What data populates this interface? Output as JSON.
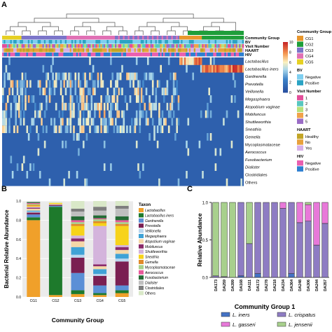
{
  "panel_labels": {
    "a": "A",
    "b": "B",
    "c": "C"
  },
  "chart_data": [
    {
      "type": "heatmap",
      "panel": "A",
      "annotation_rows": [
        "Community Group",
        "BV",
        "Visit Number",
        "HAART",
        "HIV"
      ],
      "taxa_rows": [
        "Lactobacillus",
        "Lactobacillus iners",
        "Gardnerella",
        "Prevotella",
        "Veillonella",
        "Megasphaera",
        "Atopobium vaginae",
        "Mobiluncus",
        "Shuttleworthia",
        "Sneathia",
        "Gemella",
        "Mycoplasmataceae",
        "Aerococcus",
        "Fusobacterium",
        "Dialister",
        "Clostridiales",
        "Others"
      ],
      "legends": [
        {
          "title": "Community Group",
          "items": [
            {
              "label": "CG1",
              "color": "#e8962c"
            },
            {
              "label": "CG2",
              "color": "#1e9e3a"
            },
            {
              "label": "CG3",
              "color": "#7b75c9"
            },
            {
              "label": "CG4",
              "color": "#e070b4"
            },
            {
              "label": "CG5",
              "color": "#e6d024"
            }
          ]
        },
        {
          "title": "BV",
          "items": [
            {
              "label": "Negative",
              "color": "#7ecff0"
            },
            {
              "label": "Positive",
              "color": "#2ba3c4"
            }
          ]
        },
        {
          "title": "Visit Number",
          "items": [
            {
              "label": "1",
              "color": "#e34f9a"
            },
            {
              "label": "2",
              "color": "#58c7c0"
            },
            {
              "label": "3",
              "color": "#b7e07a"
            },
            {
              "label": "4",
              "color": "#f1a24a"
            },
            {
              "label": "5",
              "color": "#9a6cc6"
            }
          ]
        },
        {
          "title": "HAART",
          "items": [
            {
              "label": "Healthy",
              "color": "#c2a526"
            },
            {
              "label": "No",
              "color": "#e8a13c"
            },
            {
              "label": "Yes",
              "color": "#d6b0e8"
            }
          ]
        },
        {
          "title": "HIV",
          "items": [
            {
              "label": "Negative",
              "color": "#e95fb0"
            },
            {
              "label": "Positive",
              "color": "#2d7fd1"
            }
          ]
        }
      ],
      "colorbar_ticks": [
        "10",
        "8",
        "6",
        "4",
        "2",
        "0"
      ]
    },
    {
      "type": "bar",
      "panel": "B",
      "stacked": true,
      "xlabel": "Community Group",
      "ylabel": "Bacterial Relative Abundance",
      "ylim": [
        0,
        1
      ],
      "yticks": [
        "0.0",
        "0.2",
        "0.4",
        "0.6",
        "0.8",
        "1.0"
      ],
      "categories": [
        "CG1",
        "CG2",
        "CG3",
        "CG4",
        "CG5"
      ],
      "legend_title": "Taxon",
      "series": [
        {
          "name": "Lactobacillus",
          "color": "#f0a02a",
          "values": [
            0.8,
            0.02,
            0.03,
            0.02,
            0.04
          ]
        },
        {
          "name": "Lactobacillus iners",
          "color": "#1e7a2c",
          "values": [
            0.03,
            0.92,
            0.04,
            0.02,
            0.03
          ]
        },
        {
          "name": "Gardnerella",
          "color": "#5b8fd6",
          "values": [
            0.03,
            0.01,
            0.18,
            0.08,
            0.05
          ]
        },
        {
          "name": "Prevotella",
          "color": "#7a1f52",
          "values": [
            0.02,
            0.01,
            0.16,
            0.1,
            0.25
          ]
        },
        {
          "name": "Veillonella",
          "color": "#b9d7ef",
          "values": [
            0.01,
            0.0,
            0.03,
            0.02,
            0.03
          ]
        },
        {
          "name": "Megasphaera",
          "color": "#3fa2d6",
          "values": [
            0.01,
            0.0,
            0.08,
            0.05,
            0.05
          ]
        },
        {
          "name": "Atopobium vaginae",
          "color": "#f5d8a8",
          "values": [
            0.02,
            0.01,
            0.06,
            0.03,
            0.04
          ]
        },
        {
          "name": "Mobiluncus",
          "color": "#8a2a6a",
          "values": [
            0.01,
            0.0,
            0.03,
            0.02,
            0.03
          ]
        },
        {
          "name": "Shuttleworthia",
          "color": "#d4b4dc",
          "values": [
            0.01,
            0.0,
            0.03,
            0.4,
            0.02
          ]
        },
        {
          "name": "Sneathia",
          "color": "#f7d31a",
          "values": [
            0.01,
            0.01,
            0.1,
            0.03,
            0.2
          ]
        },
        {
          "name": "Gemella",
          "color": "#e08a2a",
          "values": [
            0.01,
            0.0,
            0.02,
            0.02,
            0.02
          ]
        },
        {
          "name": "Mycoplasmataceae",
          "color": "#a8d08a",
          "values": [
            0.01,
            0.0,
            0.02,
            0.02,
            0.02
          ]
        },
        {
          "name": "Aerococcus",
          "color": "#e85a9a",
          "values": [
            0.01,
            0.0,
            0.02,
            0.01,
            0.02
          ]
        },
        {
          "name": "Fusobacterium",
          "color": "#246b35",
          "values": [
            0.01,
            0.0,
            0.04,
            0.03,
            0.04
          ]
        },
        {
          "name": "Dialister",
          "color": "#bfbfbf",
          "values": [
            0.0,
            0.0,
            0.05,
            0.05,
            0.08
          ]
        },
        {
          "name": "Clostridiales",
          "color": "#7e7e7e",
          "values": [
            0.0,
            0.0,
            0.03,
            0.04,
            0.03
          ]
        },
        {
          "name": "Others",
          "color": "#d9e8c8",
          "values": [
            0.0,
            0.01,
            0.08,
            0.06,
            0.05
          ]
        }
      ]
    },
    {
      "type": "bar",
      "panel": "C",
      "stacked": true,
      "xlabel": "Community Group 1",
      "ylabel": "Relative Abundance",
      "ylim": [
        0,
        1
      ],
      "yticks": [
        "0.0",
        "0.5",
        "1.0"
      ],
      "categories": [
        "DA173",
        "DA259",
        "DA399",
        "DA168",
        "DA111",
        "DA172",
        "DA278",
        "DA218",
        "DA234",
        "DA364",
        "DA248",
        "DA306",
        "DA244",
        "DA357"
      ],
      "series": [
        {
          "name": "L. iners",
          "color": "#4472c4",
          "values": [
            0,
            0,
            0,
            0.02,
            0,
            0.05,
            0,
            0,
            0,
            0.05,
            0,
            0,
            0,
            0
          ]
        },
        {
          "name": "L. crispatus",
          "color": "#8e7cc3",
          "values": [
            0.02,
            0.01,
            0,
            0.98,
            0.45,
            0.95,
            1.0,
            1.0,
            0.92,
            0.95,
            0.73,
            0.75,
            0.43,
            0.72
          ]
        },
        {
          "name": "L. gasseri",
          "color": "#e879d9",
          "values": [
            0,
            0,
            0,
            0,
            0,
            0,
            0,
            0,
            0.08,
            0,
            0.27,
            0.22,
            0.57,
            0.28
          ]
        },
        {
          "name": "L. jensenii",
          "color": "#a8d08d",
          "values": [
            0.98,
            0.99,
            1.0,
            0,
            0.55,
            0,
            0,
            0,
            0,
            0,
            0,
            0.03,
            0,
            0
          ]
        }
      ]
    }
  ]
}
